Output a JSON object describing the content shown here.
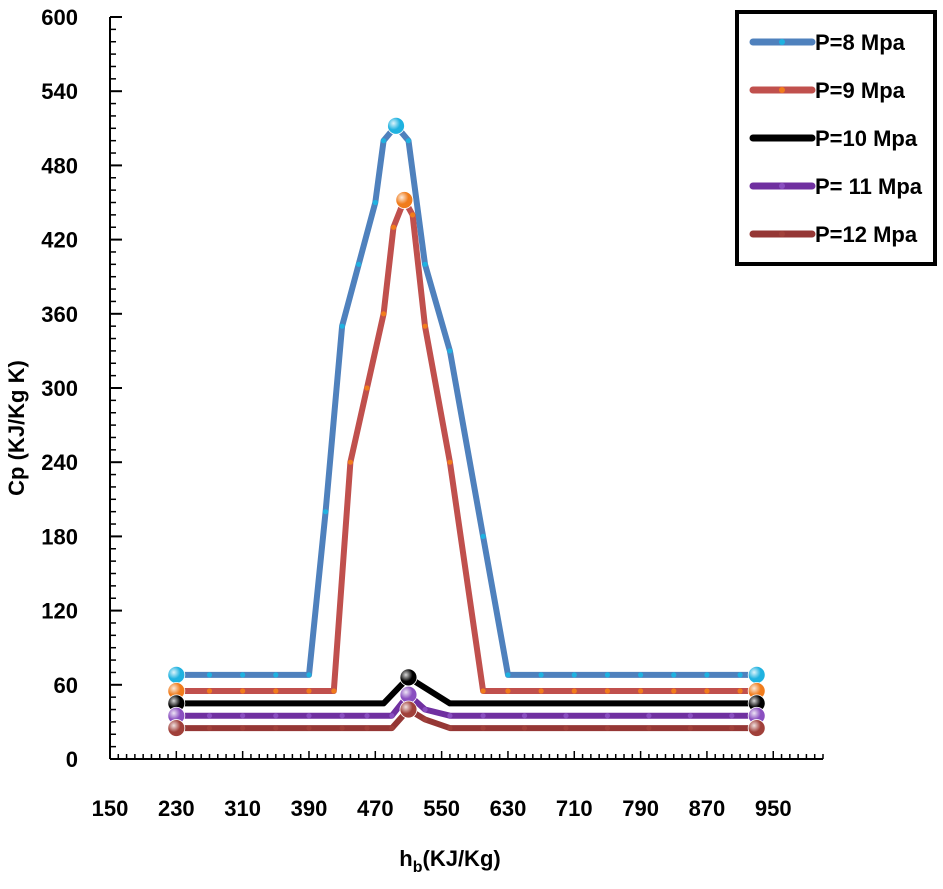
{
  "chart_data": {
    "type": "line",
    "title": "",
    "xlabel": "h",
    "xlabel_sub": "b",
    "xlabel_unit": "(KJ/Kg)",
    "ylabel": "Cp (KJ/Kg K)",
    "xlim": [
      150,
      1010
    ],
    "ylim": [
      0,
      600
    ],
    "x_ticks": [
      "150",
      "230",
      "310",
      "390",
      "470",
      "550",
      "630",
      "710",
      "790",
      "870",
      "950"
    ],
    "y_ticks": [
      "0",
      "60",
      "120",
      "180",
      "240",
      "300",
      "360",
      "420",
      "480",
      "540",
      "600"
    ],
    "legend_position": "top-right",
    "series": [
      {
        "name": "P=8 Mpa",
        "color": "#4f81bd",
        "marker_color": "#1fb2e0",
        "x": [
          230,
          270,
          310,
          350,
          390,
          410,
          430,
          450,
          470,
          480,
          495,
          510,
          530,
          560,
          600,
          630,
          670,
          710,
          750,
          790,
          830,
          870,
          910,
          930
        ],
        "y": [
          68,
          68,
          68,
          68,
          68,
          200,
          350,
          400,
          450,
          500,
          512,
          500,
          400,
          330,
          180,
          68,
          68,
          68,
          68,
          68,
          68,
          68,
          68,
          68
        ]
      },
      {
        "name": "P=9 Mpa",
        "color": "#c0504d",
        "marker_color": "#f07c1c",
        "x": [
          230,
          270,
          310,
          350,
          390,
          420,
          440,
          460,
          480,
          492,
          505,
          515,
          530,
          560,
          600,
          630,
          670,
          710,
          750,
          790,
          830,
          870,
          910,
          930
        ],
        "y": [
          55,
          55,
          55,
          55,
          55,
          55,
          240,
          300,
          360,
          430,
          452,
          440,
          350,
          240,
          55,
          55,
          55,
          55,
          55,
          55,
          55,
          55,
          55,
          55
        ]
      },
      {
        "name": "P=10 Mpa",
        "color": "#000000",
        "marker_color": "#000000",
        "x": [
          230,
          300,
          400,
          480,
          510,
          560,
          650,
          750,
          850,
          930
        ],
        "y": [
          45,
          45,
          45,
          45,
          66,
          45,
          45,
          45,
          45,
          45
        ]
      },
      {
        "name": "P= 11 Mpa",
        "color": "#7030a0",
        "marker_color": "#8a4fc0",
        "x": [
          230,
          270,
          310,
          350,
          390,
          430,
          460,
          490,
          510,
          530,
          560,
          600,
          650,
          700,
          750,
          800,
          850,
          900,
          930
        ],
        "y": [
          35,
          35,
          35,
          35,
          35,
          35,
          35,
          35,
          52,
          40,
          35,
          35,
          35,
          35,
          35,
          35,
          35,
          35,
          35
        ]
      },
      {
        "name": "P=12 Mpa",
        "color": "#953735",
        "marker_color": "#a0403a",
        "x": [
          230,
          270,
          310,
          350,
          390,
          430,
          460,
          490,
          510,
          530,
          560,
          600,
          650,
          700,
          750,
          800,
          850,
          900,
          930
        ],
        "y": [
          25,
          25,
          25,
          25,
          25,
          25,
          25,
          25,
          40,
          32,
          25,
          25,
          25,
          25,
          25,
          25,
          25,
          25,
          25
        ]
      }
    ]
  }
}
